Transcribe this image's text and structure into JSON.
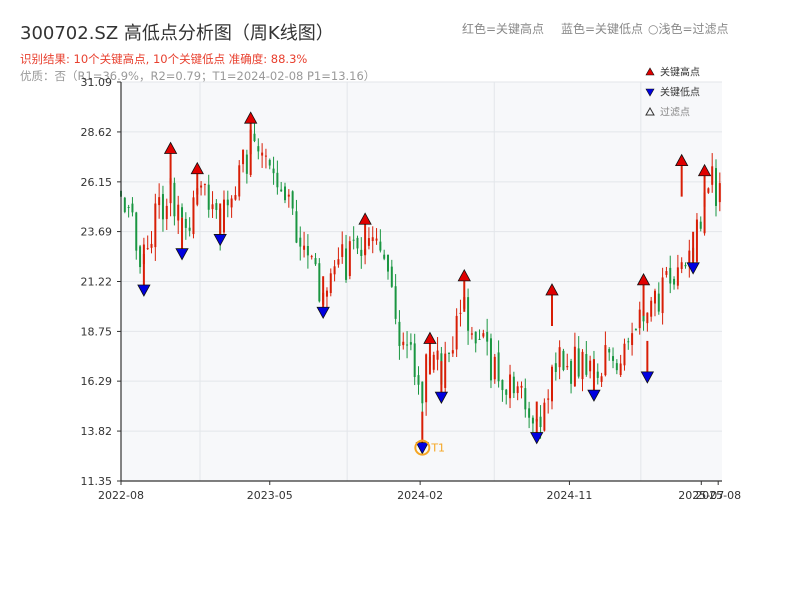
{
  "header": {
    "title": "300702.SZ 高低点分析图（周K线图）",
    "result": "识别结果: 10个关键高点, 10个关键低点   准确度: 88.3%",
    "quality": "优质：否（R1=36.9%，R2=0.79；T1=2024-02-08 P1=13.16）",
    "legend_red": "红色=关键高点",
    "legend_blue": "蓝色=关键低点",
    "legend_filtered": "○浅色=过滤点"
  },
  "chart_data": {
    "type": "candlestick",
    "title": "300702.SZ 高低点分析图（周K线图）",
    "ylim": [
      11.35,
      31.09
    ],
    "y_ticks": [
      "11.35",
      "13.82",
      "16.29",
      "18.75",
      "21.22",
      "23.69",
      "26.15",
      "28.62",
      "31.09"
    ],
    "x_ticks": [
      "2022-08",
      "2023-05",
      "2024-02",
      "2024-11",
      "2025-07",
      "2025-08"
    ],
    "x_range": [
      "2022-08-01",
      "2025-08-08"
    ],
    "grid": true,
    "legend_position": "top-right",
    "legend": [
      {
        "label": "关键高点",
        "marker": "triangle-up",
        "color": "#e00000"
      },
      {
        "label": "关键低点",
        "marker": "triangle-down",
        "color": "#0000e0"
      },
      {
        "label": "过滤点",
        "marker": "triangle-up-outline",
        "color": "#333333"
      }
    ],
    "up_color": "#d81e06",
    "down_color": "#1a9641",
    "key_highs": [
      {
        "date": "2022-10-31",
        "price": 27.8
      },
      {
        "date": "2022-12-19",
        "price": 26.8
      },
      {
        "date": "2023-03-27",
        "price": 29.3
      },
      {
        "date": "2023-10-23",
        "price": 24.3
      },
      {
        "date": "2024-02-19",
        "price": 18.4
      },
      {
        "date": "2024-04-22",
        "price": 21.5
      },
      {
        "date": "2024-09-30",
        "price": 20.8
      },
      {
        "date": "2025-03-17",
        "price": 21.3
      },
      {
        "date": "2025-05-26",
        "price": 27.2
      },
      {
        "date": "2025-07-07",
        "price": 26.7
      }
    ],
    "key_lows": [
      {
        "date": "2022-09-12",
        "price": 20.8
      },
      {
        "date": "2022-11-21",
        "price": 22.6
      },
      {
        "date": "2023-01-30",
        "price": 23.3
      },
      {
        "date": "2023-08-07",
        "price": 19.7
      },
      {
        "date": "2024-02-05",
        "price": 13.0
      },
      {
        "date": "2024-03-11",
        "price": 15.5
      },
      {
        "date": "2024-09-02",
        "price": 13.5
      },
      {
        "date": "2024-12-16",
        "price": 15.6
      },
      {
        "date": "2025-03-24",
        "price": 16.5
      },
      {
        "date": "2025-06-16",
        "price": 21.9
      }
    ],
    "annotation": {
      "label": "T1",
      "date": "2024-02-05",
      "price": 13.0,
      "color": "#f5a623"
    },
    "path_anchors": [
      {
        "date": "2022-08-01",
        "price": 25.5
      },
      {
        "date": "2022-09-12",
        "price": 22.5
      },
      {
        "date": "2022-10-31",
        "price": 26.3
      },
      {
        "date": "2022-11-21",
        "price": 23.3
      },
      {
        "date": "2022-12-19",
        "price": 26.0
      },
      {
        "date": "2023-01-30",
        "price": 24.0
      },
      {
        "date": "2023-03-27",
        "price": 28.0
      },
      {
        "date": "2023-05-15",
        "price": 25.5
      },
      {
        "date": "2023-06-26",
        "price": 23.5
      },
      {
        "date": "2023-08-07",
        "price": 20.6
      },
      {
        "date": "2023-10-23",
        "price": 23.8
      },
      {
        "date": "2023-11-27",
        "price": 21.3
      },
      {
        "date": "2024-01-15",
        "price": 17.5
      },
      {
        "date": "2024-02-05",
        "price": 16.0
      },
      {
        "date": "2024-02-19",
        "price": 17.6
      },
      {
        "date": "2024-03-11",
        "price": 16.3
      },
      {
        "date": "2024-04-22",
        "price": 20.3
      },
      {
        "date": "2024-06-10",
        "price": 17.3
      },
      {
        "date": "2024-08-12",
        "price": 15.3
      },
      {
        "date": "2024-09-02",
        "price": 14.2
      },
      {
        "date": "2024-09-30",
        "price": 16.8
      },
      {
        "date": "2024-11-18",
        "price": 17.2
      },
      {
        "date": "2024-12-16",
        "price": 16.5
      },
      {
        "date": "2025-03-17",
        "price": 19.3
      },
      {
        "date": "2025-03-24",
        "price": 19.5
      },
      {
        "date": "2025-06-02",
        "price": 22.8
      },
      {
        "date": "2025-06-16",
        "price": 23.0
      },
      {
        "date": "2025-07-07",
        "price": 25.8
      },
      {
        "date": "2025-08-08",
        "price": 25.9
      }
    ]
  }
}
